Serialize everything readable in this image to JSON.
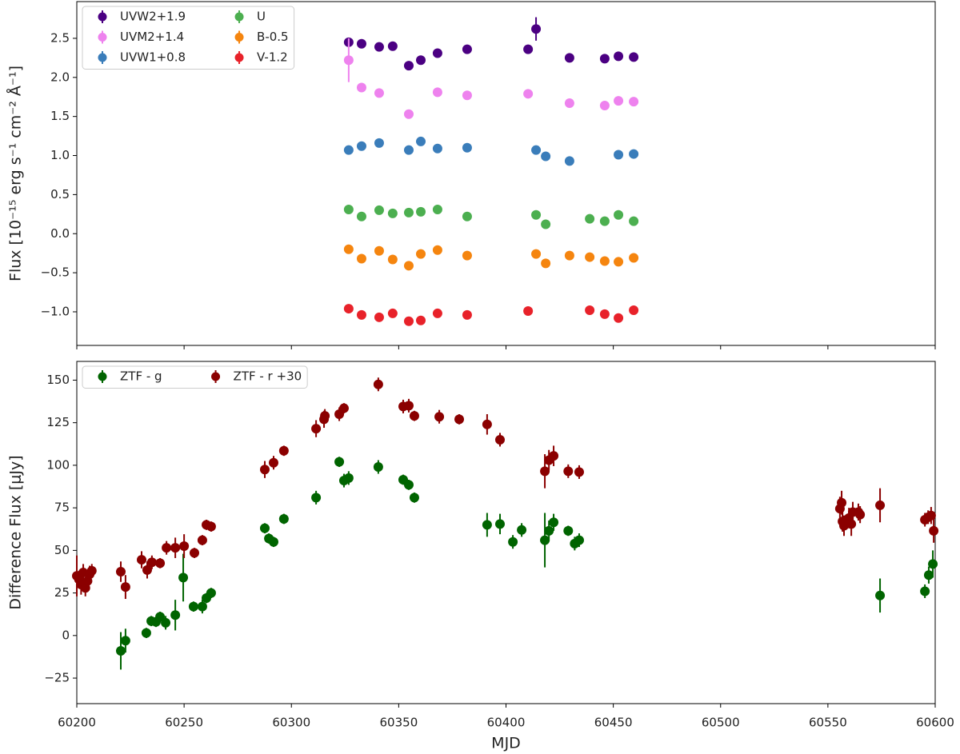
{
  "chart_data": [
    {
      "type": "scatter",
      "ylabel": "Flux [10⁻¹⁵ erg s⁻¹ cm⁻² Å⁻¹]",
      "xlim": [
        60200,
        60600
      ],
      "xticks": [
        60200,
        60250,
        60300,
        60350,
        60400,
        60450,
        60500,
        60550,
        60600
      ],
      "ylim": [
        -1.43,
        2.97
      ],
      "yticks": [
        {
          "value": -1.0,
          "label": "−1.0"
        },
        {
          "value": -0.5,
          "label": "−0.5"
        },
        {
          "value": 0,
          "label": "0.0"
        },
        0.5,
        {
          "value": 1.0,
          "label": "1.0"
        },
        1.5,
        {
          "value": 2.0,
          "label": "2.0"
        },
        2.5
      ],
      "legend": "upper left",
      "series": [
        {
          "name": "UVW2+1.9",
          "color": "#4b0082",
          "x": [
            60326.7,
            60332.7,
            60340.9,
            60347.2,
            60354.7,
            60360.3,
            60368.1,
            60381.9,
            60410.3,
            60414,
            60429.6,
            60446,
            60452.4,
            60459.5
          ],
          "values": [
            2.45,
            2.43,
            2.39,
            2.4,
            2.15,
            2.22,
            2.31,
            2.36,
            2.36,
            2.62,
            2.25,
            2.24,
            2.27,
            2.26
          ],
          "errors": [
            0.04,
            0.03,
            0.03,
            0.03,
            0.03,
            0.03,
            0.03,
            0.03,
            0.03,
            0.15,
            0.03,
            0.03,
            0.03,
            0.03
          ]
        },
        {
          "name": "UVM2+1.4",
          "color": "#ee82ee",
          "x": [
            60326.7,
            60332.7,
            60340.9,
            60354.7,
            60368.1,
            60381.9,
            60410.3,
            60429.6,
            60446,
            60452.4,
            60459.5
          ],
          "values": [
            2.22,
            1.87,
            1.8,
            1.53,
            1.81,
            1.77,
            1.79,
            1.67,
            1.64,
            1.7,
            1.69
          ],
          "errors": [
            0.28,
            0.03,
            0.03,
            0.05,
            0.03,
            0.03,
            0.03,
            0.03,
            0.03,
            0.03,
            0.03
          ]
        },
        {
          "name": "UVW1+0.8",
          "color": "#3a7dba",
          "x": [
            60326.7,
            60332.7,
            60340.9,
            60354.7,
            60360.3,
            60368.1,
            60381.9,
            60414,
            60418.5,
            60429.6,
            60452.4,
            60459.5
          ],
          "values": [
            1.07,
            1.12,
            1.16,
            1.07,
            1.18,
            1.09,
            1.1,
            1.07,
            0.99,
            0.93,
            1.01,
            1.02
          ],
          "errors": [
            0.03,
            0.03,
            0.03,
            0.03,
            0.03,
            0.03,
            0.03,
            0.03,
            0.03,
            0.03,
            0.03,
            0.03
          ]
        },
        {
          "name": "U",
          "color": "#4caf50",
          "x": [
            60326.7,
            60332.7,
            60340.9,
            60347.2,
            60354.7,
            60360.3,
            60368.1,
            60381.9,
            60414,
            60418.5,
            60439,
            60446,
            60452.4,
            60459.5
          ],
          "values": [
            0.31,
            0.22,
            0.3,
            0.26,
            0.27,
            0.28,
            0.31,
            0.22,
            0.24,
            0.12,
            0.19,
            0.16,
            0.24,
            0.16
          ],
          "errors": [
            0.03,
            0.03,
            0.03,
            0.03,
            0.03,
            0.03,
            0.03,
            0.03,
            0.03,
            0.03,
            0.03,
            0.03,
            0.03,
            0.03
          ]
        },
        {
          "name": "B-0.5",
          "color": "#f5850f",
          "x": [
            60326.7,
            60332.7,
            60340.9,
            60347.2,
            60354.7,
            60360.3,
            60368.1,
            60381.9,
            60414,
            60418.5,
            60429.6,
            60439,
            60446,
            60452.4,
            60459.5
          ],
          "values": [
            -0.2,
            -0.32,
            -0.22,
            -0.33,
            -0.41,
            -0.26,
            -0.21,
            -0.28,
            -0.26,
            -0.38,
            -0.28,
            -0.3,
            -0.35,
            -0.36,
            -0.31
          ],
          "errors": [
            0.03,
            0.03,
            0.03,
            0.03,
            0.03,
            0.03,
            0.03,
            0.03,
            0.03,
            0.03,
            0.05,
            0.03,
            0.03,
            0.03,
            0.03
          ]
        },
        {
          "name": "V-1.2",
          "color": "#e8222a",
          "x": [
            60326.7,
            60332.7,
            60340.9,
            60347.2,
            60354.7,
            60360.3,
            60368.1,
            60381.9,
            60410.3,
            60439,
            60446,
            60452.4,
            60459.5
          ],
          "values": [
            -0.96,
            -1.04,
            -1.07,
            -1.02,
            -1.12,
            -1.11,
            -1.02,
            -1.04,
            -0.99,
            -0.98,
            -1.03,
            -1.08,
            -0.98
          ],
          "errors": [
            0.05,
            0.03,
            0.03,
            0.03,
            0.04,
            0.03,
            0.03,
            0.03,
            0.03,
            0.03,
            0.03,
            0.03,
            0.03
          ]
        }
      ]
    },
    {
      "type": "scatter",
      "xlabel": "MJD",
      "ylabel": "Difference Flux [μJy]",
      "xlim": [
        60200,
        60600
      ],
      "xticks": [
        60200,
        60250,
        60300,
        60350,
        60400,
        60450,
        60500,
        60550,
        60600
      ],
      "ylim": [
        -40,
        161
      ],
      "yticks": [
        {
          "value": -25,
          "label": "−25"
        },
        0,
        25,
        50,
        75,
        100,
        125,
        150
      ],
      "legend": "upper left",
      "series": [
        {
          "name": "ZTF - g",
          "color": "#006400",
          "x": [
            60220.5,
            60222.7,
            60232.4,
            60234.7,
            60236.9,
            60238.8,
            60241.4,
            60245.9,
            60249.6,
            60254.4,
            60258.5,
            60260.4,
            60262.6,
            60287.6,
            60289.5,
            60291.7,
            60296.5,
            60311.5,
            60322.3,
            60324.5,
            60326.7,
            60340.5,
            60352.1,
            60354.7,
            60357.3,
            60391.2,
            60397.2,
            60403.2,
            60407.3,
            60418.1,
            60420,
            60422.2,
            60429,
            60432,
            60434.1,
            60574.3,
            60595.2,
            60597,
            60598.9
          ],
          "values": [
            -9,
            -3,
            1.5,
            8.5,
            8,
            11,
            7.5,
            12,
            34,
            17,
            17,
            22,
            25,
            63,
            57,
            55,
            68.5,
            81,
            102,
            91,
            92.5,
            99,
            91.5,
            88.5,
            81,
            65,
            65.5,
            55,
            62,
            56,
            61.5,
            66.5,
            61.5,
            54,
            56,
            23.5,
            26,
            35.5,
            42
          ],
          "errors": [
            11,
            7,
            3,
            3,
            3,
            3,
            4,
            9,
            14,
            3,
            4,
            3,
            3,
            3,
            3,
            3,
            3,
            4,
            3,
            4,
            4,
            4,
            3,
            3,
            3,
            7,
            6,
            4,
            4,
            16,
            6,
            5,
            3,
            4,
            4,
            10,
            4,
            5,
            8
          ]
        },
        {
          "name": "ZTF - r +30",
          "color": "#8b0000",
          "x": [
            60200,
            60201,
            60202,
            60203,
            60204,
            60205,
            60206,
            60207,
            60220.5,
            60222.7,
            60230.2,
            60232.8,
            60235,
            60238.8,
            60241.8,
            60245.9,
            60250,
            60254.8,
            60258.5,
            60260.4,
            60262.6,
            60287.6,
            60291.7,
            60296.5,
            60311.5,
            60315.2,
            60315.6,
            60322.3,
            60324.5,
            60340.5,
            60352.1,
            60354.7,
            60357.3,
            60368.9,
            60378.2,
            60391.2,
            60397.2,
            60418.1,
            60420,
            60422.2,
            60429,
            60434.1,
            60555.6,
            60556.4,
            60556.8,
            60557.5,
            60559.8,
            60560.9,
            60561.6,
            60564.2,
            60565,
            60574.3,
            60595.2,
            60596.7,
            60598.1,
            60599.3
          ],
          "values": [
            35,
            33,
            30,
            37,
            28,
            32,
            36,
            38,
            37.5,
            28.5,
            44.5,
            38.5,
            43,
            42.5,
            51.5,
            51.5,
            52.5,
            48.5,
            56,
            65,
            64,
            97.5,
            101.5,
            108.5,
            121.5,
            127,
            129,
            130,
            133.5,
            147.5,
            134.5,
            135,
            129,
            128.5,
            127,
            124,
            115,
            96.5,
            103,
            105.5,
            96.5,
            96,
            74.5,
            78,
            67,
            64.5,
            69,
            65.5,
            72.5,
            72.5,
            71,
            76.5,
            68,
            69.5,
            70.5,
            61.5
          ],
          "errors": [
            12,
            5,
            6,
            5,
            5,
            4,
            5,
            4,
            6,
            7,
            5,
            5,
            4,
            3,
            4,
            6,
            7,
            3,
            3,
            3,
            3,
            5,
            4,
            3,
            5,
            5,
            4,
            4,
            3,
            4,
            4,
            4,
            3,
            4,
            3,
            6,
            4,
            10,
            6,
            6,
            4,
            4,
            7,
            7,
            6,
            6,
            6,
            7,
            6,
            5,
            5,
            10,
            4,
            4,
            5,
            7
          ]
        }
      ]
    }
  ]
}
